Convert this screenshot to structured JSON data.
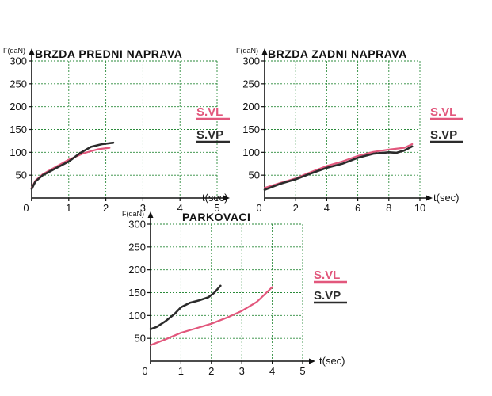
{
  "chart_data": [
    {
      "type": "line",
      "title": "BRZDA PREDNI NAPRAVA",
      "ylabel": "F(daN)",
      "xlabel": "t(sec)",
      "xlim": [
        0,
        5
      ],
      "ylim": [
        0,
        300
      ],
      "xticks": [
        0,
        1,
        2,
        3,
        4,
        5
      ],
      "yticks": [
        50,
        100,
        150,
        200,
        250,
        300
      ],
      "grid": true,
      "legend": "right",
      "series": [
        {
          "name": "S.VL",
          "color": "#e2577c",
          "x": [
            0,
            0.1,
            0.3,
            0.6,
            1.0,
            1.4,
            1.8,
            2.1
          ],
          "y": [
            22,
            38,
            52,
            66,
            84,
            98,
            107,
            110
          ]
        },
        {
          "name": "S.VP",
          "color": "#2b2b2b",
          "x": [
            0,
            0.1,
            0.3,
            0.6,
            1.0,
            1.3,
            1.6,
            1.9,
            2.2
          ],
          "y": [
            20,
            36,
            50,
            63,
            80,
            98,
            112,
            118,
            121
          ]
        }
      ]
    },
    {
      "type": "line",
      "title": "BRZDA ZADNI NAPRAVA",
      "ylabel": "F(daN)",
      "xlabel": "t(sec)",
      "xlim": [
        0,
        10
      ],
      "ylim": [
        0,
        300
      ],
      "xticks": [
        0,
        2,
        4,
        6,
        8,
        10
      ],
      "yticks": [
        50,
        100,
        150,
        200,
        250,
        300
      ],
      "grid": true,
      "legend": "right",
      "series": [
        {
          "name": "S.VL",
          "color": "#e2577c",
          "x": [
            0,
            1,
            2,
            3,
            4,
            5,
            6,
            7,
            8,
            9,
            9.5
          ],
          "y": [
            22,
            33,
            43,
            57,
            70,
            80,
            92,
            101,
            106,
            110,
            118
          ]
        },
        {
          "name": "S.VP",
          "color": "#2b2b2b",
          "x": [
            0,
            1,
            2,
            3,
            4,
            5,
            6,
            7,
            8,
            8.5,
            9,
            9.5
          ],
          "y": [
            18,
            31,
            41,
            54,
            66,
            75,
            88,
            97,
            100,
            99,
            104,
            113
          ]
        }
      ]
    },
    {
      "type": "line",
      "title": "PARKOVACI",
      "ylabel": "F(daN)",
      "xlabel": "t(sec)",
      "xlim": [
        0,
        5
      ],
      "ylim": [
        0,
        300
      ],
      "xticks": [
        0,
        1,
        2,
        3,
        4,
        5
      ],
      "yticks": [
        50,
        100,
        150,
        200,
        250,
        300
      ],
      "grid": true,
      "legend": "right",
      "series": [
        {
          "name": "S.VL",
          "color": "#e2577c",
          "x": [
            0,
            0.5,
            1,
            1.5,
            2,
            2.5,
            3,
            3.5,
            4
          ],
          "y": [
            35,
            48,
            62,
            72,
            82,
            95,
            110,
            130,
            162
          ]
        },
        {
          "name": "S.VP",
          "color": "#2b2b2b",
          "x": [
            0,
            0.2,
            0.5,
            0.8,
            1.0,
            1.3,
            1.6,
            1.9,
            2.1,
            2.3
          ],
          "y": [
            70,
            75,
            88,
            104,
            118,
            128,
            133,
            140,
            150,
            165
          ]
        }
      ]
    }
  ]
}
